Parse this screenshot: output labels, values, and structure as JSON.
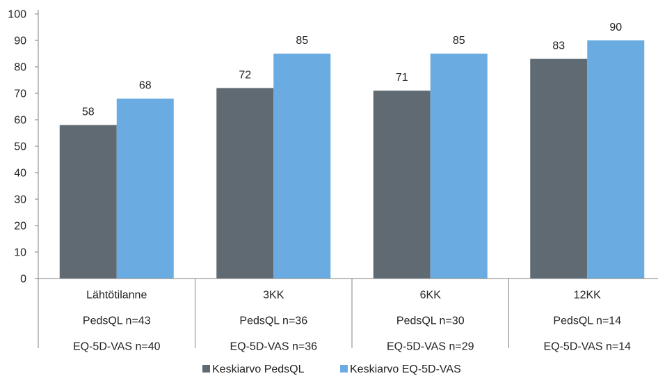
{
  "chart_data": {
    "type": "bar",
    "title": "",
    "xlabel": "",
    "ylabel": "",
    "ylim": [
      0,
      100
    ],
    "yticks": [
      0,
      10,
      20,
      30,
      40,
      50,
      60,
      70,
      80,
      90,
      100
    ],
    "grid": false,
    "legend_position": "bottom",
    "categories": [
      {
        "lines": [
          "Lähtötilanne",
          "PedsQL n=43",
          "EQ-5D-VAS n=40"
        ]
      },
      {
        "lines": [
          "3KK",
          "PedsQL n=36",
          "EQ-5D-VAS n=36"
        ]
      },
      {
        "lines": [
          "6KK",
          "PedsQL n=30",
          "EQ-5D-VAS n=29"
        ]
      },
      {
        "lines": [
          "12KK",
          "PedsQL n=14",
          "EQ-5D-VAS n=14"
        ]
      }
    ],
    "series": [
      {
        "name": "Keskiarvo PedsQL",
        "color": "#5f6a72",
        "values": [
          58,
          72,
          71,
          83
        ]
      },
      {
        "name": "Keskiarvo EQ-5D-VAS",
        "color": "#6aace1",
        "values": [
          68,
          85,
          85,
          90
        ]
      }
    ]
  }
}
